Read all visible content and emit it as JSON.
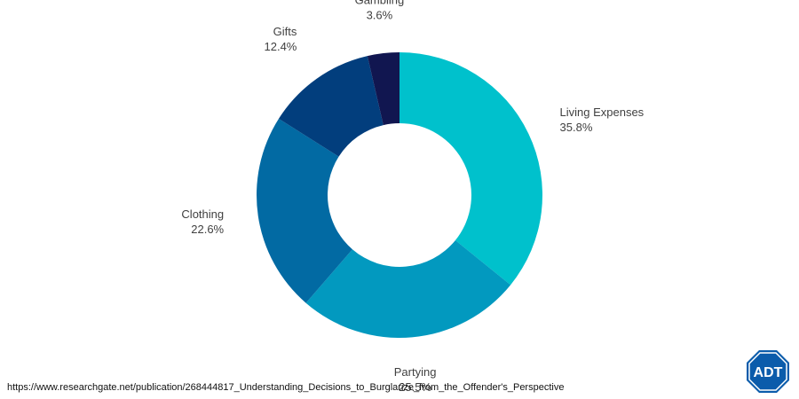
{
  "chart_data": {
    "type": "pie",
    "style": "donut",
    "title": "",
    "slices": [
      {
        "label": "Living Expenses",
        "value": 35.8,
        "display": "35.8%",
        "color": "#00C1CC"
      },
      {
        "label": "Partying",
        "value": 25.5,
        "display": "25.5%",
        "color": "#0299BF"
      },
      {
        "label": "Clothing",
        "value": 22.6,
        "display": "22.6%",
        "color": "#026AA3"
      },
      {
        "label": "Gifts",
        "value": 12.4,
        "display": "12.4%",
        "color": "#023E7D"
      },
      {
        "label": "Gambling",
        "value": 3.6,
        "display": "3.6%",
        "color": "#111650"
      }
    ],
    "start": "top",
    "direction": "clockwise"
  },
  "source": {
    "url": "https://www.researchgate.net/publication/268444817_Understanding_Decisions_to_Burglarize_from_the_Offender's_Perspective"
  },
  "logo": {
    "text": "ADT",
    "color": "#0B5CAB",
    "icon": "adt-octagon-logo"
  }
}
